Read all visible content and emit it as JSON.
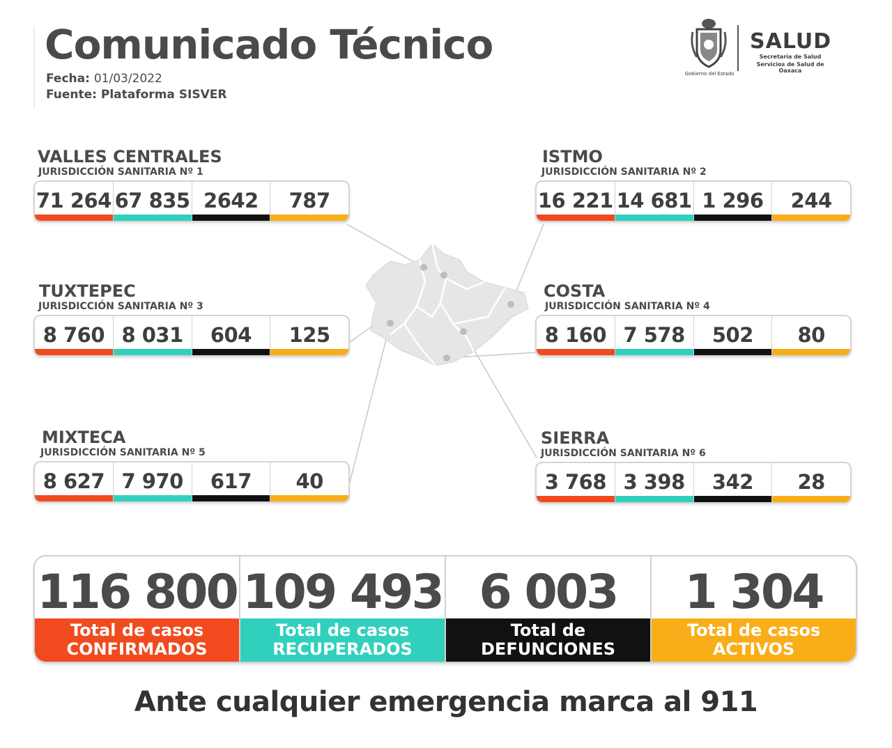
{
  "header": {
    "title": "Comunicado Técnico",
    "fecha_label": "Fecha:",
    "fecha_value": "01/03/2022",
    "fuente_label": "Fuente:",
    "fuente_value": "Plataforma SISVER"
  },
  "logo": {
    "gobierno": "Gobierno del Estado",
    "salud": "SALUD",
    "line1": "Secretaría de Salud",
    "line2": "Servicios de Salud de Oaxaca"
  },
  "colors": {
    "confirmados": "#f04a1e",
    "recuperados": "#31d0bc",
    "defunciones": "#111111",
    "activos": "#f9ad18"
  },
  "regions": [
    {
      "name": "VALLES CENTRALES",
      "jurisdiccion": "JURISDICCIÓN SANITARIA Nº 1",
      "values": [
        "71 264",
        "67 835",
        "2642",
        "787"
      ]
    },
    {
      "name": "ISTMO",
      "jurisdiccion": "JURISDICCIÓN SANITARIA Nº 2",
      "values": [
        "16 221",
        "14 681",
        "1 296",
        "244"
      ]
    },
    {
      "name": "TUXTEPEC",
      "jurisdiccion": "JURISDICCIÓN SANITARIA Nº 3",
      "values": [
        "8 760",
        "8 031",
        "604",
        "125"
      ]
    },
    {
      "name": "COSTA",
      "jurisdiccion": "JURISDICCIÓN SANITARIA Nº 4",
      "values": [
        "8 160",
        "7 578",
        "502",
        "80"
      ]
    },
    {
      "name": "MIXTECA",
      "jurisdiccion": "JURISDICCIÓN SANITARIA Nº 5",
      "values": [
        "8 627",
        "7 970",
        "617",
        "40"
      ]
    },
    {
      "name": "SIERRA",
      "jurisdiccion": "JURISDICCIÓN SANITARIA Nº 6",
      "values": [
        "3 768",
        "3 398",
        "342",
        "28"
      ]
    }
  ],
  "totals": [
    {
      "value": "116 800",
      "label_line1": "Total de casos",
      "label_line2": "CONFIRMADOS"
    },
    {
      "value": "109 493",
      "label_line1": "Total de casos",
      "label_line2": "RECUPERADOS"
    },
    {
      "value": "6 003",
      "label_line1": "Total de",
      "label_line2": "DEFUNCIONES"
    },
    {
      "value": "1 304",
      "label_line1": "Total de casos",
      "label_line2": "ACTIVOS"
    }
  ],
  "footer": "Ante cualquier emergencia marca al 911"
}
